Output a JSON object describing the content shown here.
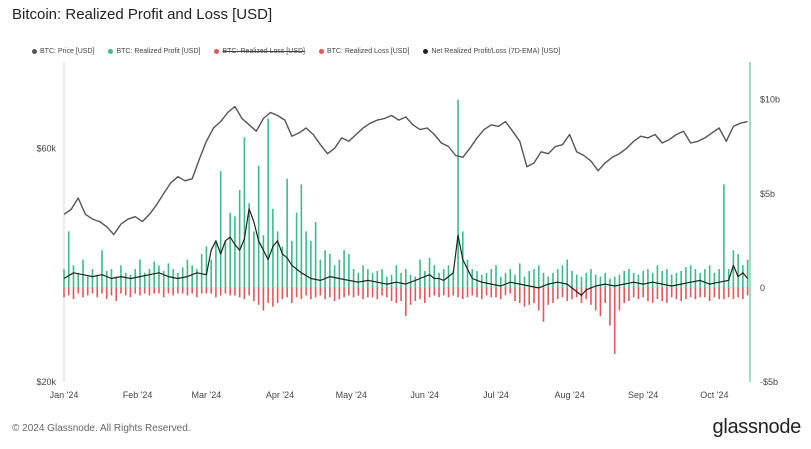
{
  "title": "Bitcoin: Realized Profit and Loss [USD]",
  "footer": "© 2024 Glassnode. All Rights Reserved.",
  "brand": "glassnode",
  "legend": [
    {
      "label": "BTC: Price [USD]",
      "color": "#555555",
      "struck": false
    },
    {
      "label": "BTC: Realized Profit [USD]",
      "color": "#3cba8c",
      "struck": false
    },
    {
      "label": "BTC: Realized Loss [USD]",
      "color": "#e0585b",
      "struck": true
    },
    {
      "label": "BTC: Realized Loss [USD]",
      "color": "#e0585b",
      "struck": false
    },
    {
      "label": "Net Realized Profit/Loss (7D-EMA) [USD]",
      "color": "#222222",
      "struck": false
    }
  ],
  "chart_data": {
    "type": "line",
    "x_ticks": [
      "Jan '24",
      "Feb '24",
      "Mar '24",
      "Apr '24",
      "May '24",
      "Jun '24",
      "Jul '24",
      "Aug '24",
      "Sep '24",
      "Oct '24"
    ],
    "left_axis": {
      "ticks": [
        "$20k",
        "$60k"
      ],
      "tick_values": [
        20000,
        60000
      ],
      "scale": "log",
      "range": [
        20000,
        90000
      ]
    },
    "right_axis": {
      "ticks": [
        "$10b",
        "$5b",
        "0",
        "-$5b"
      ],
      "tick_values": [
        10,
        5,
        0,
        -5
      ],
      "unit": "USD billions",
      "range": [
        -5,
        12
      ]
    },
    "x_range_days": [
      0,
      289
    ],
    "series": [
      {
        "name": "BTC: Price [USD]",
        "type": "line",
        "color": "#555555",
        "axis": "left",
        "x_days": [
          0,
          3,
          6,
          9,
          12,
          15,
          18,
          21,
          24,
          27,
          30,
          33,
          36,
          39,
          42,
          45,
          48,
          51,
          54,
          57,
          60,
          63,
          66,
          69,
          72,
          75,
          78,
          81,
          84,
          87,
          90,
          93,
          96,
          99,
          102,
          105,
          108,
          111,
          114,
          117,
          120,
          123,
          126,
          129,
          132,
          135,
          138,
          141,
          144,
          147,
          150,
          153,
          156,
          159,
          162,
          165,
          168,
          171,
          174,
          177,
          180,
          183,
          186,
          189,
          192,
          195,
          198,
          201,
          204,
          207,
          210,
          213,
          216,
          219,
          222,
          225,
          228,
          231,
          234,
          237,
          240,
          243,
          246,
          249,
          252,
          255,
          258,
          261,
          264,
          267,
          270,
          273,
          276,
          279,
          282,
          285,
          288
        ],
        "values": [
          44000,
          45000,
          47500,
          44000,
          43000,
          42500,
          41500,
          40000,
          42000,
          43000,
          43500,
          42500,
          44000,
          46000,
          48500,
          51000,
          52500,
          51500,
          52000,
          57000,
          62000,
          66000,
          68000,
          71000,
          73000,
          69000,
          67000,
          65000,
          69000,
          71000,
          70000,
          68500,
          63500,
          64500,
          66000,
          64000,
          61000,
          58500,
          60000,
          63000,
          62000,
          64000,
          66000,
          67500,
          68500,
          69000,
          70000,
          68500,
          69500,
          67000,
          65500,
          66000,
          64000,
          61500,
          60500,
          58000,
          57500,
          60000,
          63000,
          65500,
          67000,
          66500,
          68000,
          65000,
          62000,
          55000,
          56000,
          59000,
          58500,
          60500,
          61000,
          64000,
          59000,
          58000,
          56500,
          54000,
          56000,
          57500,
          58500,
          60000,
          62000,
          63500,
          63000,
          64000,
          61500,
          62500,
          64000,
          65000,
          61500,
          62000,
          63000,
          64500,
          66000,
          62000,
          66500,
          67500,
          68000
        ]
      },
      {
        "name": "BTC: Realized Profit [USD]",
        "type": "bar",
        "color": "#3cba8c",
        "axis": "right",
        "x_days": [
          0,
          2,
          4,
          6,
          8,
          10,
          12,
          14,
          16,
          18,
          20,
          22,
          24,
          26,
          28,
          30,
          32,
          34,
          36,
          38,
          40,
          42,
          44,
          46,
          48,
          50,
          52,
          54,
          56,
          58,
          60,
          62,
          64,
          66,
          68,
          70,
          72,
          74,
          76,
          78,
          80,
          82,
          84,
          86,
          88,
          90,
          92,
          94,
          96,
          98,
          100,
          102,
          104,
          106,
          108,
          110,
          112,
          114,
          116,
          118,
          120,
          122,
          124,
          126,
          128,
          130,
          132,
          134,
          136,
          138,
          140,
          142,
          144,
          146,
          148,
          150,
          152,
          154,
          156,
          158,
          160,
          162,
          164,
          166,
          168,
          170,
          172,
          174,
          176,
          178,
          180,
          182,
          184,
          186,
          188,
          190,
          192,
          194,
          196,
          198,
          200,
          202,
          204,
          206,
          208,
          210,
          212,
          214,
          216,
          218,
          220,
          222,
          224,
          226,
          228,
          230,
          232,
          234,
          236,
          238,
          240,
          242,
          244,
          246,
          248,
          250,
          252,
          254,
          256,
          258,
          260,
          262,
          264,
          266,
          268,
          270,
          272,
          274,
          276,
          278,
          280,
          282,
          284,
          286,
          288
        ],
        "values": [
          1.0,
          3.0,
          1.2,
          0.8,
          1.5,
          0.6,
          1.0,
          0.7,
          2.0,
          0.9,
          1.0,
          0.6,
          1.2,
          0.8,
          0.7,
          1.0,
          1.5,
          0.8,
          1.0,
          1.4,
          1.2,
          0.9,
          1.3,
          1.0,
          0.8,
          1.1,
          1.5,
          1.2,
          1.0,
          1.8,
          2.2,
          1.5,
          2.4,
          6.2,
          2.5,
          4.0,
          3.8,
          5.2,
          8.0,
          4.5,
          3.0,
          6.5,
          2.8,
          9.0,
          4.2,
          3.0,
          2.2,
          5.8,
          2.5,
          4.0,
          5.5,
          3.0,
          2.5,
          3.5,
          1.5,
          2.0,
          1.8,
          1.2,
          1.5,
          2.0,
          1.8,
          1.0,
          0.8,
          1.2,
          1.0,
          0.8,
          0.9,
          1.0,
          0.6,
          0.7,
          1.2,
          0.8,
          1.0,
          0.7,
          0.6,
          1.5,
          0.9,
          1.6,
          1.2,
          0.8,
          1.0,
          1.2,
          0.9,
          10.0,
          3.0,
          1.5,
          1.0,
          0.9,
          0.7,
          0.8,
          1.0,
          1.2,
          0.6,
          0.8,
          1.0,
          0.7,
          1.3,
          0.6,
          0.9,
          1.0,
          1.2,
          0.8,
          0.6,
          0.8,
          1.0,
          1.2,
          1.5,
          0.9,
          0.7,
          0.6,
          0.8,
          1.0,
          0.7,
          0.6,
          0.8,
          0.5,
          0.6,
          0.7,
          0.9,
          1.0,
          0.8,
          0.7,
          0.9,
          1.0,
          0.8,
          1.2,
          0.9,
          1.0,
          0.7,
          0.8,
          0.9,
          1.1,
          1.2,
          1.0,
          0.8,
          1.0,
          1.2,
          0.8,
          1.0,
          5.5,
          1.0,
          2.0,
          1.8,
          1.2,
          1.5
        ]
      },
      {
        "name": "BTC: Realized Loss [USD]",
        "type": "bar",
        "color": "#e0585b",
        "axis": "right",
        "x_days": [
          0,
          2,
          4,
          6,
          8,
          10,
          12,
          14,
          16,
          18,
          20,
          22,
          24,
          26,
          28,
          30,
          32,
          34,
          36,
          38,
          40,
          42,
          44,
          46,
          48,
          50,
          52,
          54,
          56,
          58,
          60,
          62,
          64,
          66,
          68,
          70,
          72,
          74,
          76,
          78,
          80,
          82,
          84,
          86,
          88,
          90,
          92,
          94,
          96,
          98,
          100,
          102,
          104,
          106,
          108,
          110,
          112,
          114,
          116,
          118,
          120,
          122,
          124,
          126,
          128,
          130,
          132,
          134,
          136,
          138,
          140,
          142,
          144,
          146,
          148,
          150,
          152,
          154,
          156,
          158,
          160,
          162,
          164,
          166,
          168,
          170,
          172,
          174,
          176,
          178,
          180,
          182,
          184,
          186,
          188,
          190,
          192,
          194,
          196,
          198,
          200,
          202,
          204,
          206,
          208,
          210,
          212,
          214,
          216,
          218,
          220,
          222,
          224,
          226,
          228,
          230,
          232,
          234,
          236,
          238,
          240,
          242,
          244,
          246,
          248,
          250,
          252,
          254,
          256,
          258,
          260,
          262,
          264,
          266,
          268,
          270,
          272,
          274,
          276,
          278,
          280,
          282,
          284,
          286,
          288
        ],
        "values": [
          -0.5,
          -0.4,
          -0.6,
          -0.3,
          -0.5,
          -0.4,
          -0.3,
          -0.5,
          -0.3,
          -0.6,
          -0.4,
          -0.7,
          -0.3,
          -0.4,
          -0.5,
          -0.3,
          -0.4,
          -0.3,
          -0.4,
          -0.3,
          -0.3,
          -0.5,
          -0.3,
          -0.4,
          -0.3,
          -0.3,
          -0.4,
          -0.3,
          -0.5,
          -0.3,
          -0.3,
          -0.3,
          -0.5,
          -0.4,
          -0.3,
          -0.4,
          -0.4,
          -0.5,
          -0.6,
          -0.4,
          -0.7,
          -0.9,
          -1.2,
          -0.8,
          -1.0,
          -0.8,
          -0.6,
          -0.5,
          -0.8,
          -0.5,
          -0.6,
          -0.4,
          -0.6,
          -0.5,
          -0.4,
          -0.6,
          -0.5,
          -0.7,
          -0.6,
          -0.5,
          -0.4,
          -0.5,
          -0.4,
          -0.6,
          -0.5,
          -0.5,
          -0.6,
          -0.4,
          -0.5,
          -0.7,
          -0.8,
          -0.7,
          -1.5,
          -0.9,
          -0.7,
          -0.6,
          -0.8,
          -0.5,
          -0.4,
          -0.5,
          -0.4,
          -0.5,
          -0.4,
          -0.5,
          -0.6,
          -0.5,
          -0.4,
          -0.5,
          -0.6,
          -0.4,
          -0.5,
          -0.5,
          -0.6,
          -0.4,
          -0.3,
          -0.7,
          -0.8,
          -1.0,
          -0.9,
          -0.8,
          -1.2,
          -1.8,
          -0.9,
          -0.8,
          -0.6,
          -0.5,
          -0.7,
          -0.6,
          -0.5,
          -0.8,
          -0.6,
          -0.9,
          -1.2,
          -1.5,
          -0.8,
          -2.0,
          -3.5,
          -1.2,
          -0.8,
          -0.7,
          -0.5,
          -0.6,
          -0.5,
          -0.7,
          -0.8,
          -0.6,
          -0.7,
          -0.8,
          -0.5,
          -0.6,
          -0.7,
          -0.6,
          -0.5,
          -0.6,
          -0.5,
          -0.5,
          -0.7,
          -0.5,
          -0.6,
          -0.6,
          -0.5,
          -0.6,
          -0.5,
          -0.6,
          -0.4
        ]
      },
      {
        "name": "Net Realized Profit/Loss (7D-EMA) [USD]",
        "type": "line",
        "color": "#222222",
        "axis": "right",
        "x_days": [
          0,
          4,
          8,
          12,
          16,
          20,
          24,
          28,
          32,
          36,
          40,
          44,
          48,
          52,
          56,
          60,
          62,
          64,
          66,
          68,
          70,
          72,
          74,
          76,
          78,
          80,
          82,
          84,
          86,
          88,
          90,
          92,
          94,
          96,
          98,
          100,
          104,
          108,
          112,
          116,
          120,
          124,
          128,
          132,
          136,
          140,
          144,
          148,
          150,
          152,
          154,
          156,
          158,
          160,
          162,
          164,
          166,
          168,
          172,
          176,
          180,
          184,
          188,
          192,
          196,
          200,
          204,
          208,
          212,
          216,
          218,
          220,
          224,
          228,
          232,
          236,
          240,
          244,
          248,
          252,
          256,
          260,
          264,
          268,
          272,
          276,
          280,
          282,
          284,
          286,
          288
        ],
        "values": [
          0.5,
          0.8,
          0.7,
          0.6,
          0.7,
          0.5,
          0.6,
          0.5,
          0.6,
          0.7,
          0.8,
          0.6,
          0.5,
          0.6,
          0.8,
          0.7,
          2.0,
          2.5,
          1.8,
          2.5,
          2.7,
          2.3,
          2.0,
          2.6,
          4.2,
          3.5,
          2.5,
          2.0,
          1.5,
          2.2,
          2.5,
          1.8,
          1.6,
          1.2,
          1.0,
          0.8,
          0.5,
          0.4,
          0.6,
          0.5,
          0.4,
          0.3,
          0.4,
          0.3,
          0.2,
          0.3,
          0.2,
          0.4,
          0.5,
          0.6,
          0.7,
          0.5,
          0.5,
          0.4,
          0.6,
          0.8,
          2.8,
          1.5,
          0.5,
          0.3,
          0.2,
          0.1,
          0.3,
          0.2,
          0.1,
          0.0,
          0.2,
          0.3,
          0.2,
          -0.2,
          -0.4,
          -0.1,
          0.1,
          0.2,
          0.1,
          0.2,
          0.3,
          0.2,
          0.3,
          0.2,
          0.1,
          0.2,
          0.3,
          0.4,
          0.2,
          0.3,
          0.4,
          1.2,
          0.6,
          0.8,
          0.5
        ]
      }
    ]
  }
}
